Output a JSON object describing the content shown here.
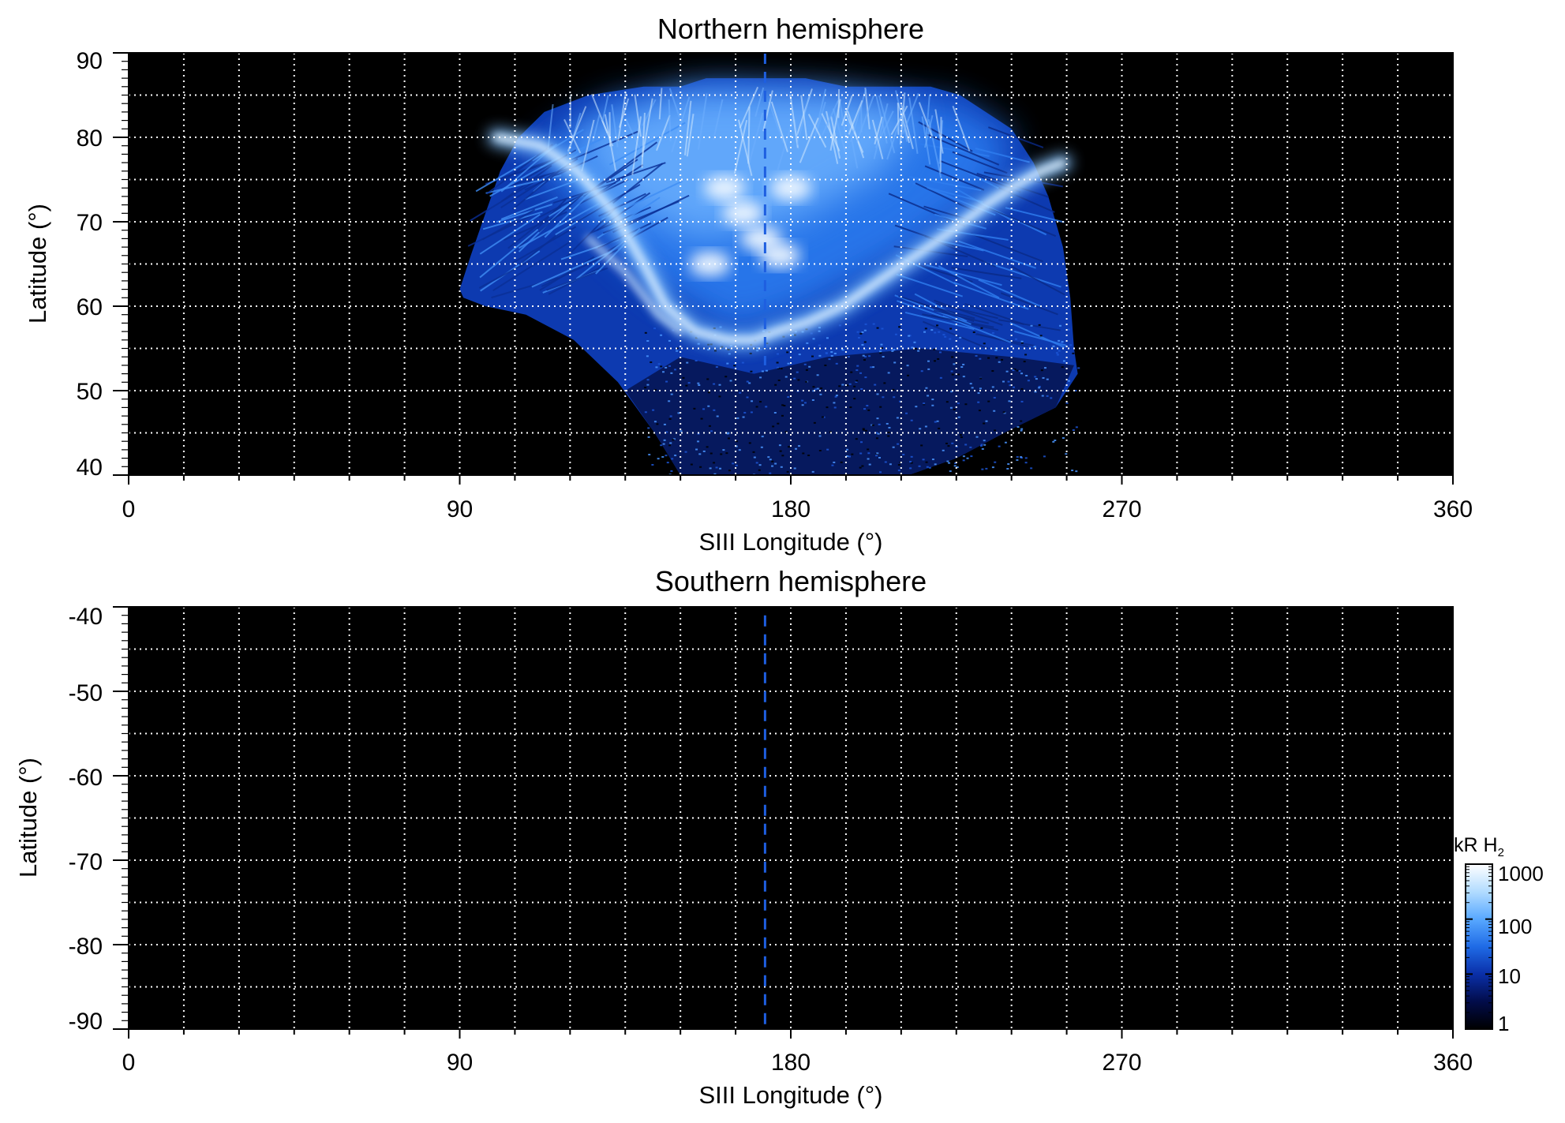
{
  "chart_data": [
    {
      "type": "heatmap",
      "title": "Northern hemisphere",
      "xlabel": "SIII Longitude (°)",
      "ylabel": "Latitude (°)",
      "xlim": [
        0,
        360
      ],
      "ylim": [
        40,
        90
      ],
      "x_ticks": [
        "0",
        "90",
        "180",
        "270",
        "360"
      ],
      "y_ticks": [
        "40",
        "50",
        "60",
        "70",
        "80",
        "90"
      ],
      "grid": "dotted white, every 15° longitude and 5° latitude",
      "reference_line": {
        "style": "dashed blue",
        "longitude": 173,
        "lat_range": [
          53,
          90
        ]
      },
      "background": "#000000",
      "emission_region": {
        "outline": [
          [
            90,
            62
          ],
          [
            93,
            66
          ],
          [
            97,
            71
          ],
          [
            101,
            76
          ],
          [
            106,
            80
          ],
          [
            113,
            83
          ],
          [
            125,
            85
          ],
          [
            140,
            86
          ],
          [
            150,
            86
          ],
          [
            157,
            87
          ],
          [
            184,
            87
          ],
          [
            195,
            86
          ],
          [
            218,
            86
          ],
          [
            226,
            85
          ],
          [
            233,
            83
          ],
          [
            240,
            81
          ],
          [
            246,
            77
          ],
          [
            250,
            73
          ],
          [
            254,
            67
          ],
          [
            256,
            61
          ],
          [
            257,
            55
          ],
          [
            258,
            52
          ],
          [
            252,
            48
          ],
          [
            238,
            45
          ],
          [
            225,
            42
          ],
          [
            212,
            40
          ],
          [
            150,
            40
          ],
          [
            143,
            45
          ],
          [
            133,
            51
          ],
          [
            121,
            56
          ],
          [
            108,
            59
          ],
          [
            97,
            60
          ],
          [
            91,
            61
          ]
        ],
        "main_oval": [
          [
            100,
            80
          ],
          [
            112,
            79
          ],
          [
            122,
            76
          ],
          [
            132,
            71
          ],
          [
            140,
            65
          ],
          [
            146,
            60
          ],
          [
            154,
            57
          ],
          [
            163,
            56
          ],
          [
            170,
            56
          ],
          [
            176,
            57
          ],
          [
            184,
            58
          ],
          [
            194,
            60
          ],
          [
            204,
            63
          ],
          [
            214,
            66
          ],
          [
            224,
            69
          ],
          [
            233,
            72
          ],
          [
            240,
            74
          ],
          [
            248,
            76
          ],
          [
            254,
            77
          ]
        ],
        "secondary_arc": [
          [
            125,
            68
          ],
          [
            135,
            64
          ],
          [
            144,
            59
          ],
          [
            150,
            57
          ]
        ],
        "inner_spots": [
          [
            167,
            71
          ],
          [
            172,
            68
          ],
          [
            177,
            66
          ],
          [
            162,
            74
          ],
          [
            180,
            74
          ],
          [
            158,
            65
          ]
        ]
      }
    },
    {
      "type": "heatmap",
      "title": "Southern hemisphere",
      "xlabel": "SIII Longitude (°)",
      "ylabel": "Latitude (°)",
      "xlim": [
        0,
        360
      ],
      "ylim": [
        -90,
        -40
      ],
      "x_ticks": [
        "0",
        "90",
        "180",
        "270",
        "360"
      ],
      "y_ticks": [
        "-40",
        "-50",
        "-60",
        "-70",
        "-80",
        "-90"
      ],
      "grid": "dotted white, every 15° longitude and 5° latitude",
      "reference_line": {
        "style": "dashed blue",
        "longitude": 173,
        "lat_range": [
          -90,
          -41
        ]
      },
      "background": "#000000",
      "emission_region": null
    }
  ],
  "colorbar": {
    "label_main": "kR H",
    "label_sub": "2",
    "scale": "log",
    "range": [
      1,
      1000
    ],
    "ticks": [
      "1000",
      "100",
      "10",
      "1"
    ],
    "colors": [
      "#000000",
      "#020c4a",
      "#0a2fa8",
      "#1f6be6",
      "#58a8ff",
      "#b2dcff",
      "#ffffff"
    ]
  }
}
